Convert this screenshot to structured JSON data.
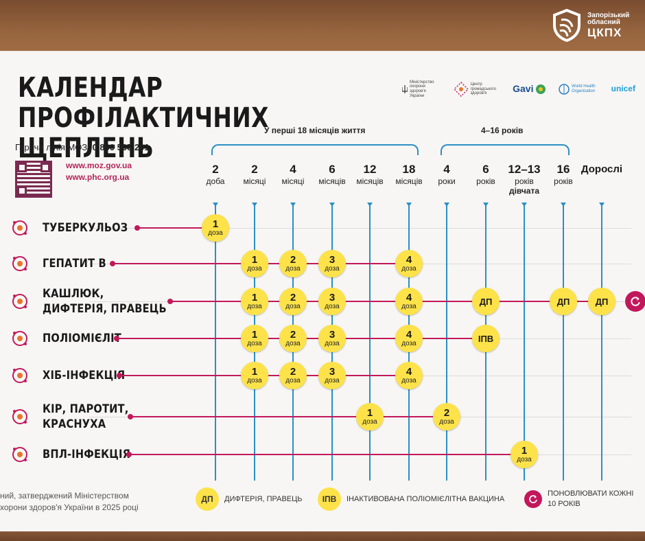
{
  "org": {
    "line1": "Запорізький",
    "line2": "обласний",
    "line3": "ЦКПХ"
  },
  "title": {
    "line1": "КАЛЕНДАР ПРОФІЛАКТИЧНИХ",
    "line2": "ЩЕПЛЕНЬ"
  },
  "sponsors": {
    "ministry": "Міністерство охорони здоров'я України",
    "phc": "Центр громадського здоров'я",
    "gavi": "Gavi",
    "who": "World Health Organization",
    "unicef": "unicef"
  },
  "hotline": {
    "label": "Гаряча лінія МОЗ:",
    "number": "0 800 505 201"
  },
  "links": [
    "www.moz.gov.ua",
    "www.phc.org.ua"
  ],
  "brackets": {
    "early": "У перші 18 місяців життя",
    "later": "4–16 років"
  },
  "ages": [
    {
      "num": "2",
      "unit": "доба"
    },
    {
      "num": "2",
      "unit": "місяці"
    },
    {
      "num": "4",
      "unit": "місяці"
    },
    {
      "num": "6",
      "unit": "місяців"
    },
    {
      "num": "12",
      "unit": "місяців"
    },
    {
      "num": "18",
      "unit": "місяців"
    },
    {
      "num": "4",
      "unit": "роки"
    },
    {
      "num": "6",
      "unit": "років"
    },
    {
      "num": "12–13",
      "unit": "років",
      "unit2": "дівчата"
    },
    {
      "num": "16",
      "unit": "років"
    },
    {
      "num": "Дорослі",
      "unit": ""
    }
  ],
  "diseases": [
    {
      "line1": "ТУБЕРКУЛЬОЗ",
      "line2": ""
    },
    {
      "line1": "ГЕПАТИТ В",
      "line2": ""
    },
    {
      "line1": "КАШЛЮК,",
      "line2": "ДИФТЕРІЯ, ПРАВЕЦЬ"
    },
    {
      "line1": "ПОЛІОМІЄЛІТ",
      "line2": ""
    },
    {
      "line1": "ХІБ-ІНФЕКЦІЯ",
      "line2": ""
    },
    {
      "line1": "КІР, ПАРОТИТ,",
      "line2": "КРАСНУХА"
    },
    {
      "line1": "ВПЛ-ІНФЕКЦІЯ",
      "line2": ""
    }
  ],
  "dose_word": "доза",
  "doses": [
    {
      "row": 0,
      "col": 0,
      "label": "1",
      "kind": "dose"
    },
    {
      "row": 1,
      "col": 1,
      "label": "1",
      "kind": "dose"
    },
    {
      "row": 1,
      "col": 2,
      "label": "2",
      "kind": "dose"
    },
    {
      "row": 1,
      "col": 3,
      "label": "3",
      "kind": "dose"
    },
    {
      "row": 1,
      "col": 5,
      "label": "4",
      "kind": "dose"
    },
    {
      "row": 2,
      "col": 1,
      "label": "1",
      "kind": "dose"
    },
    {
      "row": 2,
      "col": 2,
      "label": "2",
      "kind": "dose"
    },
    {
      "row": 2,
      "col": 3,
      "label": "3",
      "kind": "dose"
    },
    {
      "row": 2,
      "col": 5,
      "label": "4",
      "kind": "dose"
    },
    {
      "row": 2,
      "col": 7,
      "label": "ДП",
      "kind": "tag"
    },
    {
      "row": 2,
      "col": 9,
      "label": "ДП",
      "kind": "tag"
    },
    {
      "row": 2,
      "col": 10,
      "label": "ДП",
      "kind": "tag"
    },
    {
      "row": 3,
      "col": 1,
      "label": "1",
      "kind": "dose"
    },
    {
      "row": 3,
      "col": 2,
      "label": "2",
      "kind": "dose"
    },
    {
      "row": 3,
      "col": 3,
      "label": "3",
      "kind": "dose"
    },
    {
      "row": 3,
      "col": 5,
      "label": "4",
      "kind": "dose"
    },
    {
      "row": 3,
      "col": 7,
      "label": "ІПВ",
      "kind": "tag"
    },
    {
      "row": 4,
      "col": 1,
      "label": "1",
      "kind": "dose"
    },
    {
      "row": 4,
      "col": 2,
      "label": "2",
      "kind": "dose"
    },
    {
      "row": 4,
      "col": 3,
      "label": "3",
      "kind": "dose"
    },
    {
      "row": 4,
      "col": 5,
      "label": "4",
      "kind": "dose"
    },
    {
      "row": 5,
      "col": 4,
      "label": "1",
      "kind": "dose"
    },
    {
      "row": 5,
      "col": 6,
      "label": "2",
      "kind": "dose"
    },
    {
      "row": 6,
      "col": 8,
      "label": "1",
      "kind": "dose"
    }
  ],
  "footnote": {
    "line1": "ний, затверджений Міністерством",
    "line2": "хорони здоров'я України в 2025 році"
  },
  "legend": {
    "dp_tag": "ДП",
    "dp_text": "ДИФТЕРІЯ, ПРАВЕЦЬ",
    "ipv_tag": "ІПВ",
    "ipv_text": "ІНАКТИВОВАНА ПОЛІОМІЄЛІТНА ВАКЦИНА",
    "renew_line1": "ПОНОВЛЮВАТИ КОЖНІ",
    "renew_line2": "10 РОКІВ"
  },
  "colors": {
    "dose": "#fde24a",
    "timeline": "#2a8fc4",
    "disease_line": "#c2185b",
    "link": "#b3265a"
  }
}
